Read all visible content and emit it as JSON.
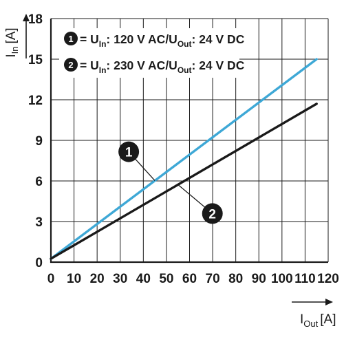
{
  "chart_data": {
    "type": "line",
    "x": {
      "label_main": "I",
      "label_sub": "Out",
      "label_unit": "[A]",
      "range": [
        0,
        120
      ],
      "ticks": [
        0,
        10,
        20,
        30,
        40,
        50,
        60,
        70,
        80,
        90,
        100,
        110,
        120
      ]
    },
    "y": {
      "label_main": "I",
      "label_sub": "In",
      "label_unit": "[A]",
      "range": [
        0,
        18
      ],
      "ticks": [
        0,
        3,
        6,
        9,
        12,
        15,
        18
      ]
    },
    "grid": true,
    "legend_placement": "top-left",
    "series": [
      {
        "id": "1",
        "marker_label": "1",
        "legend": {
          "prefix": "= U",
          "sub1": "In",
          "middle": ": 120 V AC/U",
          "sub2": "Out",
          "suffix": ": 24 V DC"
        },
        "color": "#3ea8d6",
        "x": [
          0,
          115
        ],
        "y": [
          0.25,
          15.0
        ]
      },
      {
        "id": "2",
        "marker_label": "2",
        "legend": {
          "prefix": "= U",
          "sub1": "In",
          "middle": ": 230 V AC/U",
          "sub2": "Out",
          "suffix": ": 24 V DC"
        },
        "color": "#1a1a1a",
        "x": [
          0,
          115
        ],
        "y": [
          0.25,
          11.7
        ]
      }
    ],
    "callouts": [
      {
        "series": "1",
        "label": "1",
        "at_x": 45
      },
      {
        "series": "2",
        "label": "2",
        "at_x": 55
      }
    ]
  }
}
